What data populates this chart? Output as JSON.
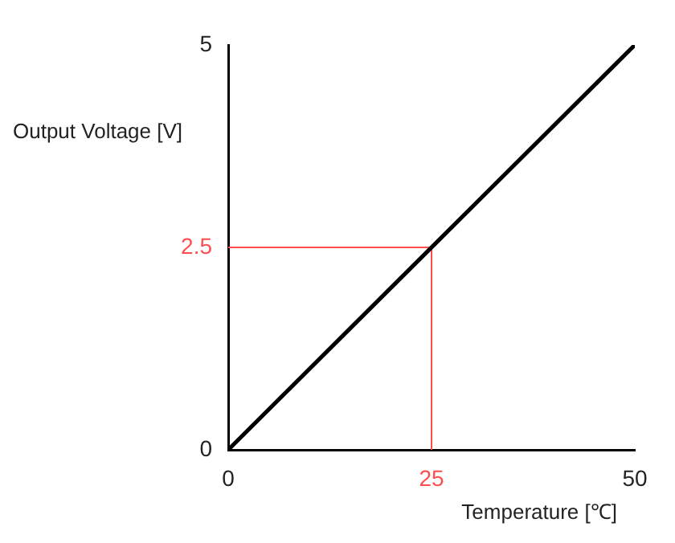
{
  "chart_data": {
    "type": "line",
    "xlabel": "Temperature [℃]",
    "ylabel": "Output Voltage [V]",
    "x": [
      0,
      50
    ],
    "series": [
      {
        "color": "#000000",
        "values": [
          0,
          5
        ]
      }
    ],
    "xlim": [
      0,
      50
    ],
    "xticks": [
      0,
      25,
      50
    ],
    "ylim": [
      0,
      5
    ],
    "yticks": [
      0,
      2.5,
      5
    ],
    "grid": false,
    "legend": false,
    "marker": "none",
    "line_style": "solid",
    "ref_lines": [
      {
        "axis": "x",
        "value": 25,
        "color": "#ff4d4d"
      },
      {
        "axis": "y",
        "value": 2.5,
        "color": "#ff4d4d"
      }
    ]
  }
}
